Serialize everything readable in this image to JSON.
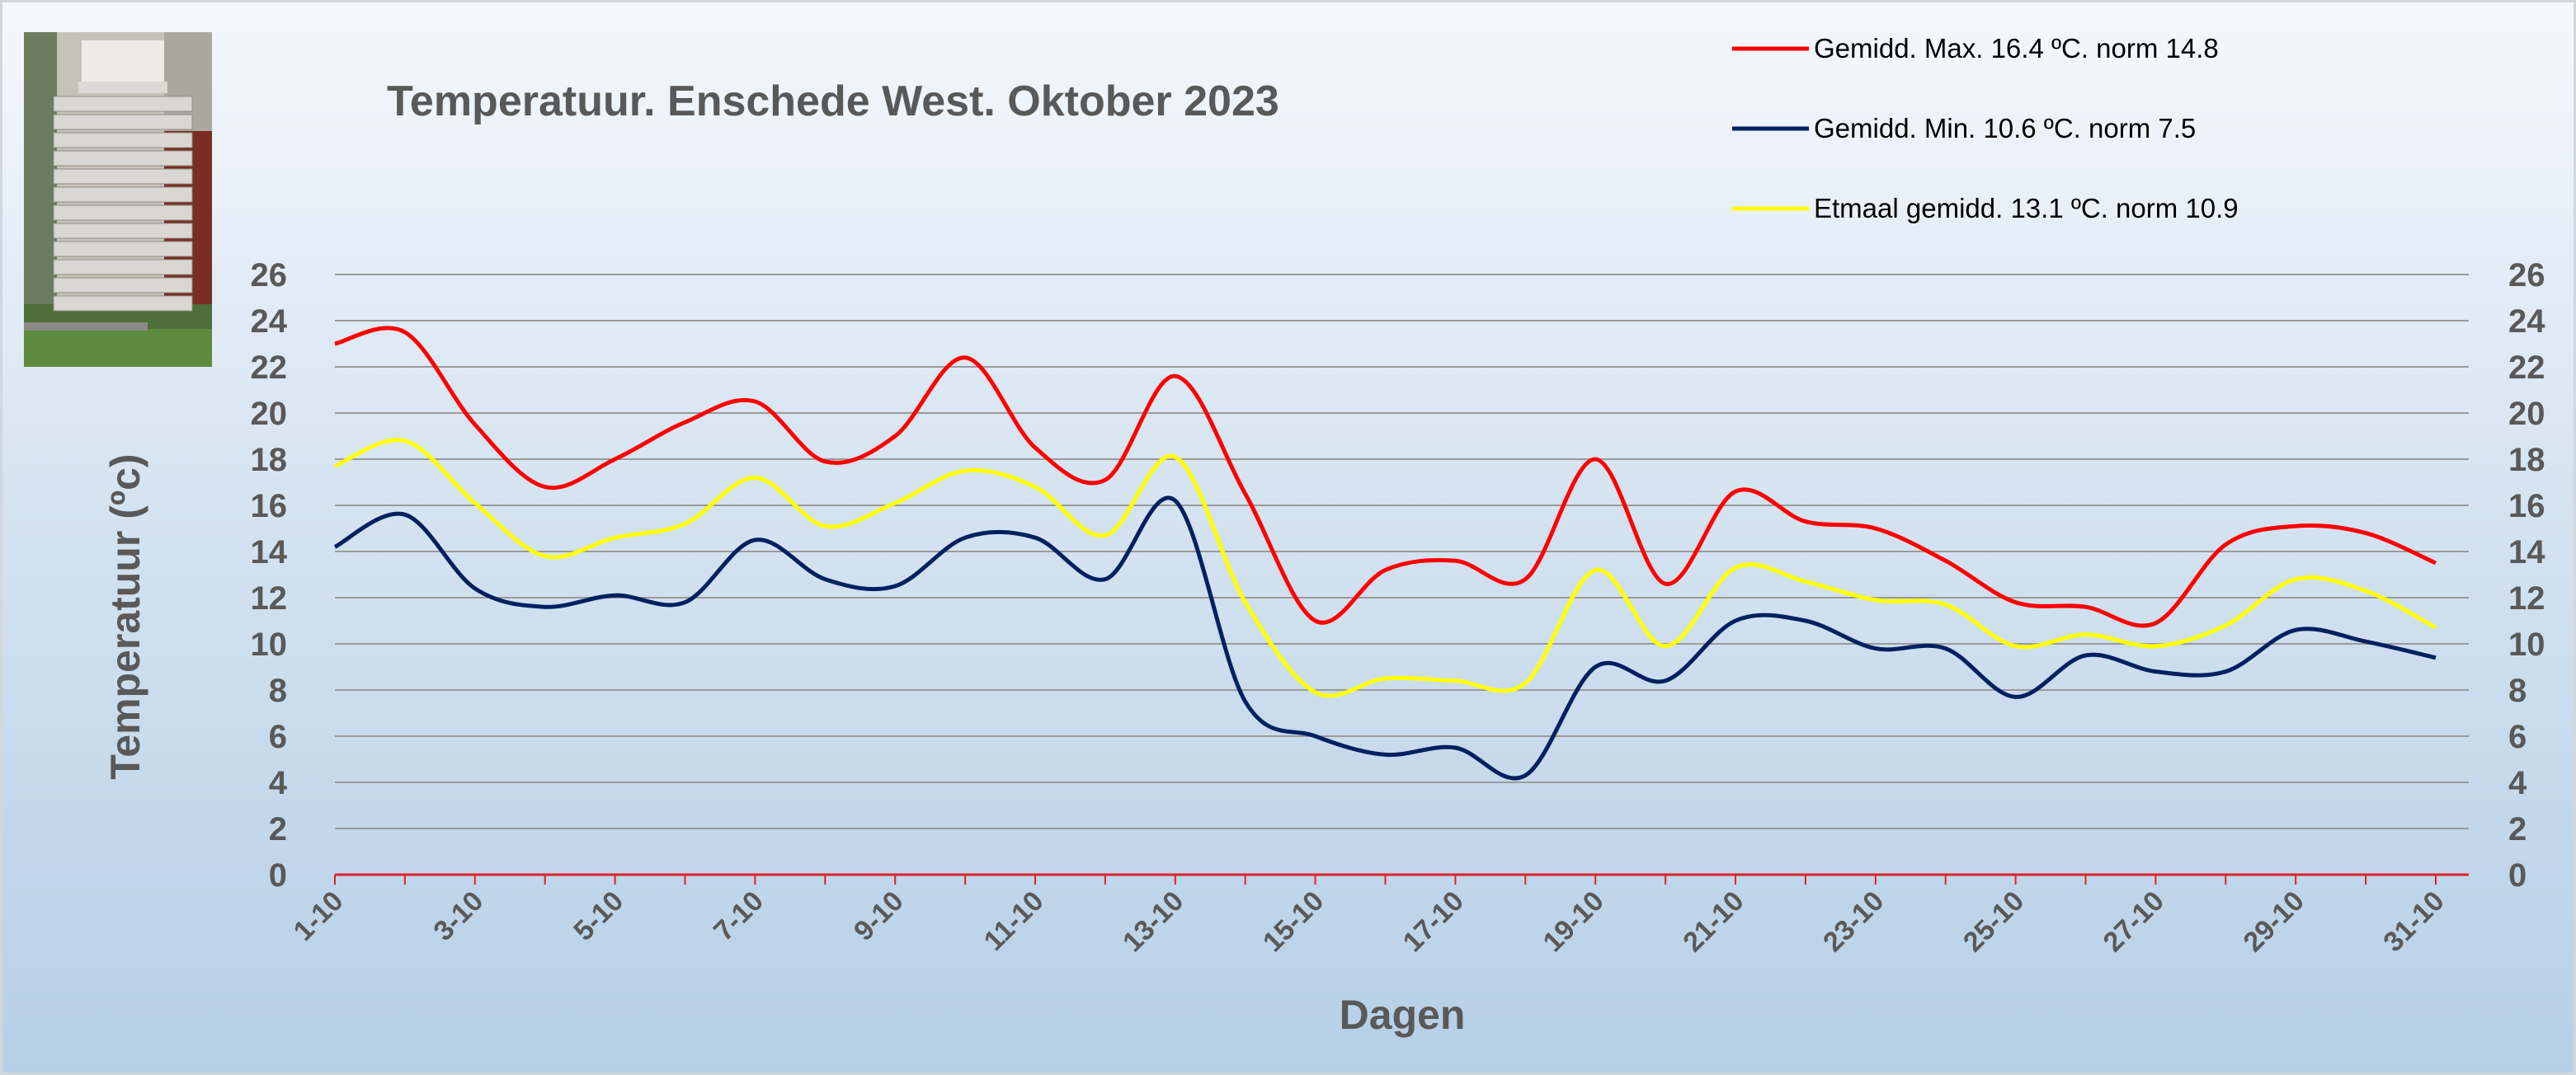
{
  "chart_data": {
    "type": "line",
    "title": "Temperatuur. Enschede West. Oktober 2023",
    "xlabel": "Dagen",
    "ylabel": "Temperatuur (ºc)",
    "ylim": [
      0,
      26
    ],
    "yticks": [
      0,
      2,
      4,
      6,
      8,
      10,
      12,
      14,
      16,
      18,
      20,
      22,
      24,
      26
    ],
    "right_axis": true,
    "grid": true,
    "legend_position": "top-right",
    "categories": [
      "1-10",
      "2-10",
      "3-10",
      "4-10",
      "5-10",
      "6-10",
      "7-10",
      "8-10",
      "9-10",
      "10-10",
      "11-10",
      "12-10",
      "13-10",
      "14-10",
      "15-10",
      "16-10",
      "17-10",
      "18-10",
      "19-10",
      "20-10",
      "21-10",
      "22-10",
      "23-10",
      "24-10",
      "25-10",
      "26-10",
      "27-10",
      "28-10",
      "29-10",
      "30-10",
      "31-10"
    ],
    "xtick_labels": [
      "1-10",
      "3-10",
      "5-10",
      "7-10",
      "9-10",
      "11-10",
      "13-10",
      "15-10",
      "17-10",
      "19-10",
      "21-10",
      "23-10",
      "25-10",
      "27-10",
      "29-10",
      "31-10"
    ],
    "series": [
      {
        "name": "Gemidd. Max. 16.4  ºC. norm 14.8",
        "color": "#ff0000",
        "values": [
          23.0,
          23.5,
          19.5,
          16.8,
          18.0,
          19.6,
          20.5,
          17.9,
          19.0,
          22.4,
          18.5,
          17.1,
          21.6,
          16.5,
          11.0,
          13.2,
          13.6,
          12.8,
          18.0,
          12.6,
          16.6,
          15.3,
          15.0,
          13.6,
          11.8,
          11.6,
          10.9,
          14.3,
          15.1,
          14.8,
          13.5
        ]
      },
      {
        "name": "Gemidd. Min. 10.6  ºC. norm 7.5",
        "color": "#002060",
        "values": [
          14.2,
          15.6,
          12.4,
          11.6,
          12.1,
          11.8,
          14.5,
          12.8,
          12.5,
          14.6,
          14.6,
          12.8,
          16.2,
          7.5,
          6.0,
          5.2,
          5.5,
          4.3,
          9.0,
          8.4,
          11.0,
          11.0,
          9.8,
          9.8,
          7.7,
          9.5,
          8.8,
          8.8,
          10.6,
          10.1,
          9.4
        ]
      },
      {
        "name": "Etmaal gemidd. 13.1  ºC. norm 10.9",
        "color": "#ffff00",
        "values": [
          17.7,
          18.8,
          16.1,
          13.8,
          14.6,
          15.2,
          17.2,
          15.1,
          16.1,
          17.5,
          16.8,
          14.7,
          18.1,
          11.8,
          7.9,
          8.5,
          8.4,
          8.3,
          13.2,
          9.9,
          13.3,
          12.7,
          11.9,
          11.7,
          9.9,
          10.4,
          9.9,
          10.8,
          12.8,
          12.3,
          10.7
        ]
      }
    ]
  },
  "photo": {
    "icon": "weather-station-photo"
  }
}
